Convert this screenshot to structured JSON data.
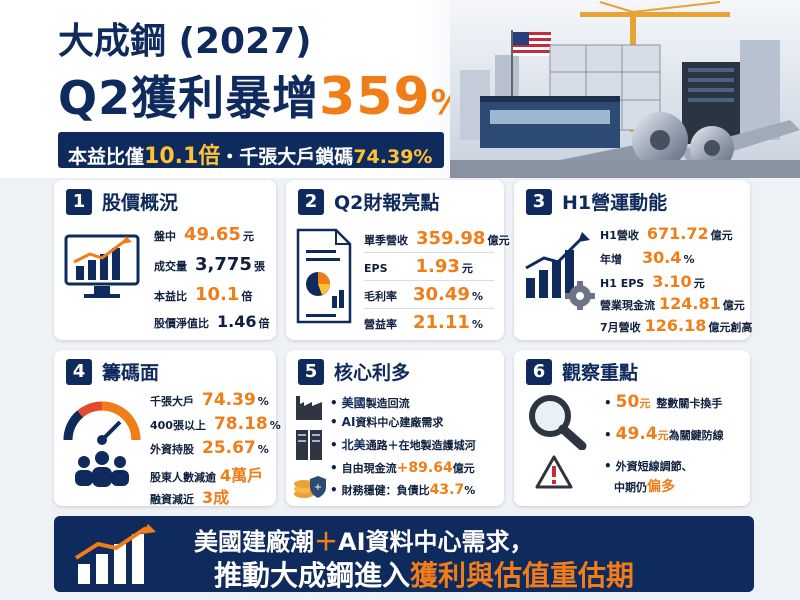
{
  "header": {
    "title_line1": "大成鋼 (2027)",
    "title_line2_prefix": "Q2獲利暴增",
    "title_line2_value": "359",
    "title_line2_pct": "%",
    "subtitle_a": "本益比僅",
    "subtitle_b": "10.1倍",
    "subtitle_c": "・千張大戶鎖碼",
    "subtitle_d": "74.39%"
  },
  "card1": {
    "num": "1",
    "title": "股價概況",
    "rows": [
      {
        "label": "盤中",
        "value": "49.65",
        "unit": "元"
      },
      {
        "label": "成交量",
        "value": "3,775",
        "unit": "張"
      },
      {
        "label": "本益比",
        "value": "10.1",
        "unit": "倍"
      },
      {
        "label": "股價淨值比",
        "value": "1.46",
        "unit": "倍"
      }
    ]
  },
  "card2": {
    "num": "2",
    "title": "Q2財報亮點",
    "rows": [
      {
        "label": "單季營收",
        "value": "359.98",
        "unit": "億元"
      },
      {
        "label": "EPS",
        "value": "1.93",
        "unit": "元"
      },
      {
        "label": "毛利率",
        "value": "30.49",
        "unit": "%"
      },
      {
        "label": "營益率",
        "value": "21.11",
        "unit": "%"
      }
    ]
  },
  "card3": {
    "num": "3",
    "title": "H1營運動能",
    "rows": [
      {
        "label": "H1營收",
        "value": "671.72",
        "unit": "億元"
      },
      {
        "label": "年增",
        "value": "30.4",
        "unit": "%"
      },
      {
        "label": "H1 EPS",
        "value": "3.10",
        "unit": "元"
      },
      {
        "label": "營業現金流",
        "value": "124.81",
        "unit": "億元"
      },
      {
        "label": "7月營收",
        "value": "126.18",
        "unit": "億元創高"
      }
    ]
  },
  "card4": {
    "num": "4",
    "title": "籌碼面",
    "rows": [
      {
        "label": "千張大戶",
        "value": "74.39",
        "unit": "%"
      },
      {
        "label": "400張以上",
        "value": "78.18",
        "unit": "%"
      },
      {
        "label": "外資持股",
        "value": "25.67",
        "unit": "%"
      },
      {
        "label": "股東人數減逾",
        "value": "4萬戶",
        "unit": ""
      },
      {
        "label": "融資減近",
        "value": "3成",
        "unit": ""
      }
    ]
  },
  "card5": {
    "num": "5",
    "title": "核心利多",
    "bullets": {
      "b1_hl": "美國",
      "b1_rest": "製造回流",
      "b2_hl": "AI",
      "b2_rest": "資料中心建廠需求",
      "b3_hl": "北美",
      "b3_rest": "通路＋在地製造護城河",
      "b4_pre": "自由現金流",
      "b4_val": "+89.64",
      "b4_unit": "億元",
      "b5_pre": "財務穩健：負債比",
      "b5_val": "43.7",
      "b5_unit": "%"
    }
  },
  "card6": {
    "num": "6",
    "title": "觀察重點",
    "p1_val": "50",
    "p1_unit": "元",
    "p1_rest": "整數關卡換手",
    "p2_val": "49.4",
    "p2_unit": "元",
    "p2_rest": "為關鍵防線",
    "p3_line1": "外資短線調節、",
    "p3_line2_pre": "中期仍",
    "p3_line2_hl": "偏多"
  },
  "banner": {
    "line1_a": "美國建廠潮",
    "line1_plus": "＋",
    "line1_b": "AI資料中心需求，",
    "line2_a": "推動大成鋼進入",
    "line2_b": "獲利與估值重估期"
  },
  "colors": {
    "navy": "#0f2a5c",
    "orange": "#f07d18",
    "yellow": "#ffc233"
  }
}
